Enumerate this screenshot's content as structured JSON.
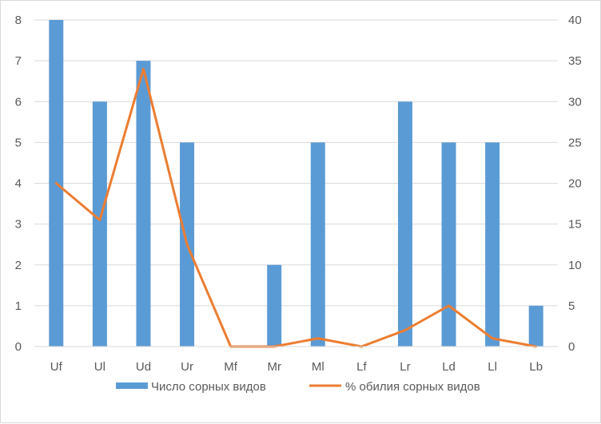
{
  "chart_data": {
    "type": "bar+line",
    "categories": [
      "Uf",
      "Ul",
      "Ud",
      "Ur",
      "Mf",
      "Mr",
      "Ml",
      "Lf",
      "Lr",
      "Ld",
      "Ll",
      "Lb"
    ],
    "series": [
      {
        "name": "Число сорных видов",
        "type": "bar",
        "axis": "left",
        "values": [
          8,
          6,
          7,
          5,
          0,
          2,
          5,
          0,
          6,
          5,
          5,
          1
        ]
      },
      {
        "name": "% обилия сорных видов",
        "type": "line",
        "axis": "right",
        "values": [
          20,
          15.5,
          34,
          12.5,
          0,
          0,
          1,
          0,
          2,
          5,
          1,
          0
        ]
      }
    ],
    "y_left": {
      "min": 0,
      "max": 8,
      "ticks": [
        "0",
        "1",
        "2",
        "3",
        "4",
        "5",
        "6",
        "7",
        "8"
      ]
    },
    "y_right": {
      "min": 0,
      "max": 40,
      "ticks": [
        "0",
        "5",
        "10",
        "15",
        "20",
        "25",
        "30",
        "35",
        "40"
      ]
    },
    "grid": "horizontal",
    "legend_position": "bottom",
    "colors": {
      "bar": "#5b9bd5",
      "line": "#ed7d31",
      "grid": "#d9d9d9",
      "text": "#595959"
    }
  }
}
